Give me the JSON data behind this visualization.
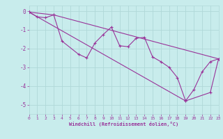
{
  "xlabel": "Windchill (Refroidissement éolien,°C)",
  "background_color": "#c8ecec",
  "grid_color": "#b0d8d8",
  "line_color": "#993399",
  "xlim": [
    0,
    23
  ],
  "ylim": [
    -5.5,
    0.3
  ],
  "yticks": [
    0,
    -1,
    -2,
    -3,
    -4,
    -5
  ],
  "xticks": [
    0,
    1,
    2,
    3,
    4,
    5,
    6,
    7,
    8,
    9,
    10,
    11,
    12,
    13,
    14,
    15,
    16,
    17,
    18,
    19,
    20,
    21,
    22,
    23
  ],
  "line1_x": [
    0,
    1,
    2,
    3,
    4,
    6,
    7,
    8,
    9,
    10,
    11,
    12,
    13,
    14,
    15,
    16,
    17,
    18,
    19,
    20,
    21,
    22,
    23
  ],
  "line1_y": [
    -0.05,
    -0.3,
    -0.35,
    -0.2,
    -1.6,
    -2.3,
    -2.5,
    -1.7,
    -1.25,
    -0.85,
    -1.85,
    -1.9,
    -1.45,
    -1.4,
    -2.45,
    -2.7,
    -3.0,
    -3.55,
    -4.8,
    -4.2,
    -3.25,
    -2.7,
    -2.55
  ],
  "line2_x": [
    0,
    3,
    23
  ],
  "line2_y": [
    -0.05,
    -0.2,
    -2.55
  ],
  "line3_x": [
    0,
    19,
    22,
    23
  ],
  "line3_y": [
    -0.05,
    -4.8,
    -4.35,
    -2.55
  ]
}
